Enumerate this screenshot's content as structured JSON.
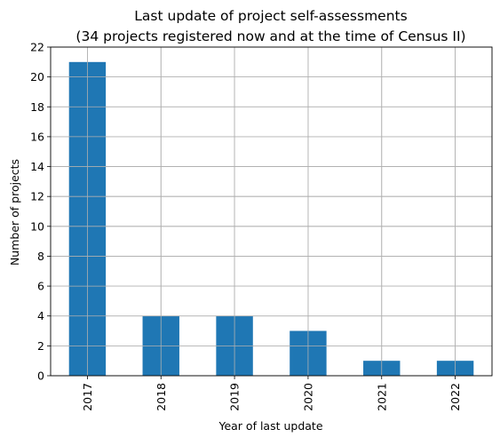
{
  "chart_data": {
    "type": "bar",
    "title": "Last update of project self-assessments",
    "subtitle": "(34 projects registered now and at the time of Census II)",
    "xlabel": "Year of last update",
    "ylabel": "Number of projects",
    "categories": [
      "2017",
      "2018",
      "2019",
      "2020",
      "2021",
      "2022"
    ],
    "values": [
      21,
      4,
      4,
      3,
      1,
      1
    ],
    "ylim": [
      0,
      22
    ],
    "yticks": [
      0,
      2,
      4,
      6,
      8,
      10,
      12,
      14,
      16,
      18,
      20,
      22
    ],
    "grid": true,
    "legend": "none",
    "colors": {
      "bar": "#1f77b4",
      "grid": "#b0b0b0",
      "axis": "#000000"
    }
  }
}
